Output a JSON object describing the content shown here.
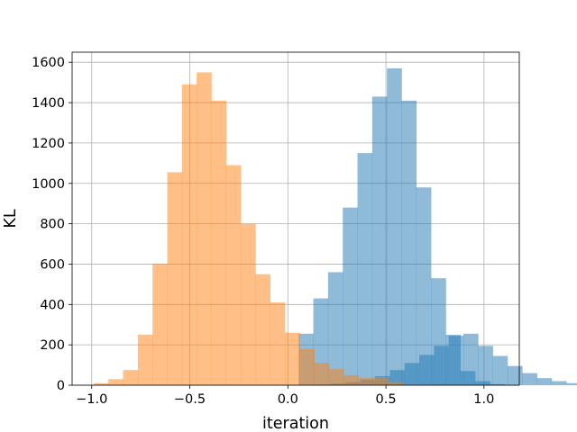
{
  "chart_data": {
    "type": "histogram",
    "title": "",
    "xlabel": "iteration",
    "ylabel": "KL",
    "xlim": [
      -1.1,
      1.18
    ],
    "ylim": [
      0,
      1650
    ],
    "x_ticks": [
      -1.0,
      -0.5,
      0.0,
      0.5,
      1.0
    ],
    "x_tick_labels": [
      "−1.0",
      "−0.5",
      "0.0",
      "0.5",
      "1.0"
    ],
    "y_ticks": [
      0,
      200,
      400,
      600,
      800,
      1000,
      1200,
      1400,
      1600
    ],
    "y_tick_labels": [
      "0",
      "200",
      "400",
      "600",
      "800",
      "1000",
      "1200",
      "1400",
      "1600"
    ],
    "grid": true,
    "legend": "none",
    "series": [
      {
        "color": "#1f77b4",
        "opacity": 0.5,
        "bin_start": -0.08,
        "bin_width": 0.075,
        "counts": [
          0,
          0,
          0,
          3,
          8,
          15,
          28,
          45,
          75,
          110,
          150,
          195,
          245,
          255,
          195,
          145,
          95,
          60,
          35,
          20,
          10,
          5,
          2
        ]
      },
      {
        "color": "#1f77b4",
        "opacity": 0.5,
        "bin_start": 0.055,
        "bin_width": 0.075,
        "counts": [
          255,
          430,
          560,
          880,
          1150,
          1430,
          1570,
          1410,
          980,
          530,
          250,
          70,
          20,
          5
        ]
      },
      {
        "color": "#ff7f0e",
        "opacity": 0.5,
        "bin_start": -0.99,
        "bin_width": 0.075,
        "counts": [
          10,
          30,
          75,
          250,
          600,
          1055,
          1490,
          1550,
          1410,
          1090,
          800,
          550,
          410,
          260,
          180,
          110,
          80,
          50,
          35,
          40,
          15,
          5,
          2
        ]
      }
    ],
    "render_note": ""
  }
}
